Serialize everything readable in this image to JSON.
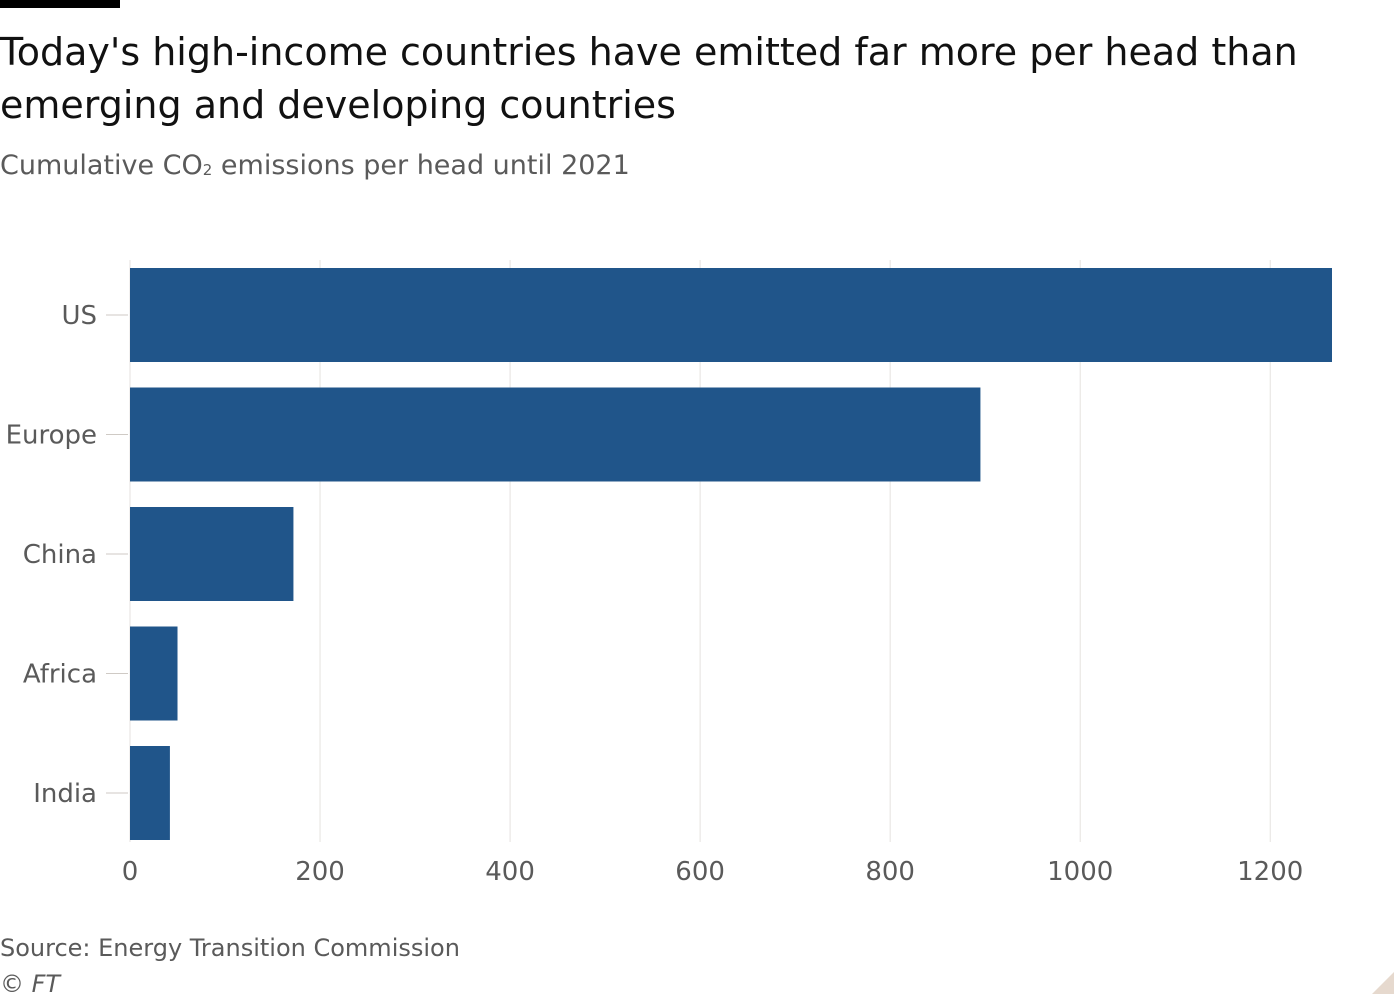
{
  "header": {
    "title": "Today's high-income countries have emitted far more per head than emerging and developing countries",
    "subtitle_pre": "Cumulative CO",
    "subtitle_sub": "2",
    "subtitle_post": " emissions per head until 2021"
  },
  "footer": {
    "source": "Source: Energy Transition Commission",
    "credit": "© FT"
  },
  "colors": {
    "bar": "#20558a",
    "grid": "#e5e2df",
    "tick_text": "#5a5a5a"
  },
  "chart_data": {
    "type": "bar",
    "orientation": "horizontal",
    "title": "Today's high-income countries have emitted far more per head than emerging and developing countries",
    "subtitle": "Cumulative CO2 emissions per head until 2021",
    "xlabel": "",
    "ylabel": "",
    "categories": [
      "US",
      "Europe",
      "China",
      "Africa",
      "India"
    ],
    "values": [
      1265,
      895,
      172,
      50,
      42
    ],
    "xlim": [
      0,
      1265
    ],
    "xticks": [
      0,
      200,
      400,
      600,
      800,
      1000,
      1200
    ],
    "grid": true,
    "legend": "none"
  }
}
